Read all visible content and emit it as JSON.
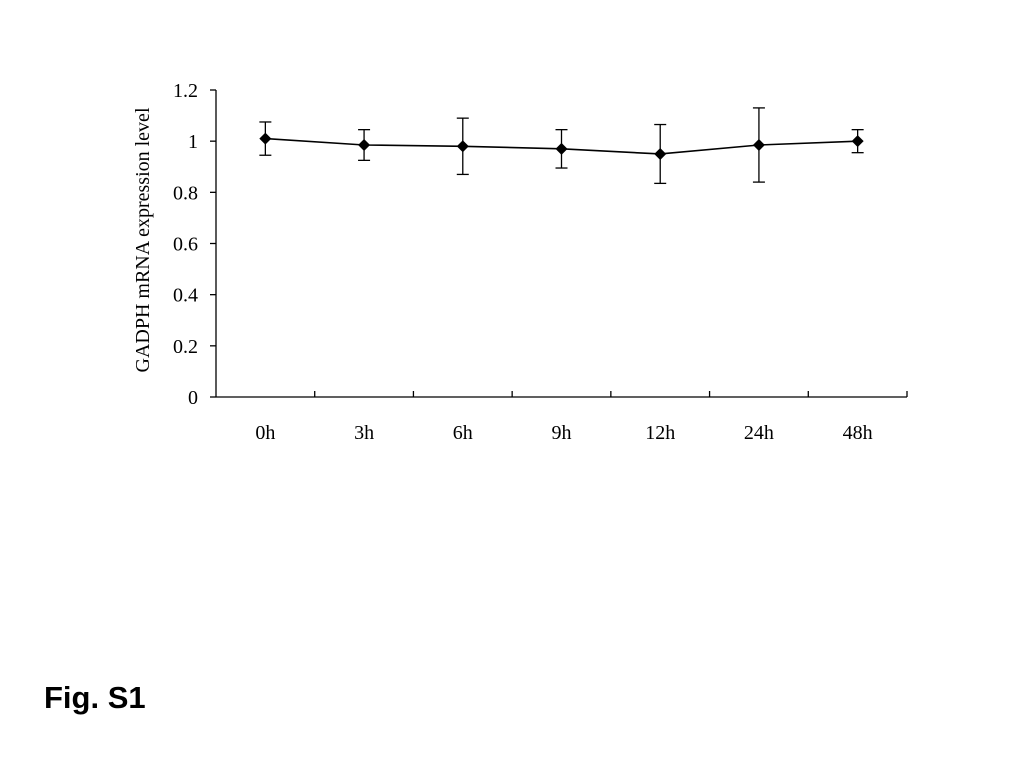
{
  "figure_label": "Fig. S1",
  "chart_data": {
    "type": "line",
    "title": "",
    "xlabel": "",
    "ylabel": "GADPH mRNA expression level",
    "categories": [
      "0h",
      "3h",
      "6h",
      "9h",
      "12h",
      "24h",
      "48h"
    ],
    "series": [
      {
        "values": [
          1.01,
          0.985,
          0.98,
          0.97,
          0.95,
          0.985,
          1.0
        ],
        "error": [
          0.065,
          0.06,
          0.11,
          0.075,
          0.115,
          0.145,
          0.045
        ],
        "color": "#000000",
        "marker": "diamond"
      }
    ],
    "ylim": [
      0,
      1.2
    ],
    "yticks": [
      "0",
      "0.2",
      "0.4",
      "0.6",
      "0.8",
      "1",
      "1.2"
    ],
    "grid": false,
    "legend": "none"
  }
}
